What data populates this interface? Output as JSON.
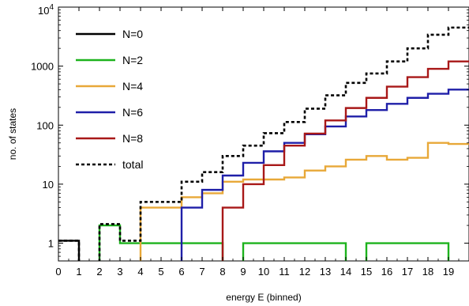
{
  "chart_data": {
    "type": "line",
    "step": true,
    "xlabel": "energy E (binned)",
    "ylabel": "no. of states",
    "x_ticks": [
      0,
      1,
      2,
      3,
      4,
      5,
      6,
      7,
      8,
      9,
      10,
      11,
      12,
      13,
      14,
      15,
      16,
      17,
      18,
      19
    ],
    "y_scale": "log",
    "y_ticks": [
      {
        "value": 1,
        "label": "1"
      },
      {
        "value": 10,
        "label": "10"
      },
      {
        "value": 100,
        "label": "100"
      },
      {
        "value": 1000,
        "label": "1000"
      },
      {
        "value": 10000,
        "label": "10",
        "exp": "4"
      }
    ],
    "xlim": [
      0,
      20
    ],
    "ylim": [
      0.5,
      10000
    ],
    "legend_position": "top-left",
    "series": [
      {
        "name": "N=0",
        "color": "#000000",
        "dash": "",
        "values": [
          1.1,
          0,
          0,
          0,
          0,
          0,
          0,
          0,
          0,
          0,
          0,
          0,
          0,
          0,
          0,
          0,
          0,
          0,
          0,
          0
        ]
      },
      {
        "name": "N=2",
        "color": "#1db31d",
        "dash": "",
        "values": [
          0,
          0,
          2,
          1,
          1,
          1,
          1,
          1,
          0,
          1,
          1,
          1,
          1,
          1,
          0,
          1,
          1,
          1,
          1,
          0
        ]
      },
      {
        "name": "N=4",
        "color": "#e8a838",
        "dash": "",
        "values": [
          0,
          0,
          0,
          0,
          4,
          4,
          6,
          7,
          11,
          12,
          12,
          13,
          17,
          20,
          26,
          30,
          26,
          28,
          50,
          48
        ]
      },
      {
        "name": "N=6",
        "color": "#1f1fa8",
        "dash": "",
        "values": [
          0,
          0,
          0,
          0,
          0,
          0,
          4,
          8,
          14,
          23,
          36,
          50,
          70,
          95,
          140,
          180,
          230,
          290,
          340,
          400
        ]
      },
      {
        "name": "N=8",
        "color": "#a81818",
        "dash": "",
        "values": [
          0,
          0,
          0,
          0,
          0,
          0,
          0,
          0,
          4,
          10,
          21,
          45,
          72,
          120,
          195,
          290,
          450,
          650,
          900,
          1200
        ]
      },
      {
        "name": "total",
        "color": "#000000",
        "dash": "4,3",
        "values": [
          1.1,
          0,
          2.1,
          1.1,
          5,
          5,
          11,
          16,
          30,
          45,
          73,
          113,
          190,
          320,
          520,
          750,
          1200,
          2000,
          3400,
          4500
        ]
      }
    ]
  }
}
